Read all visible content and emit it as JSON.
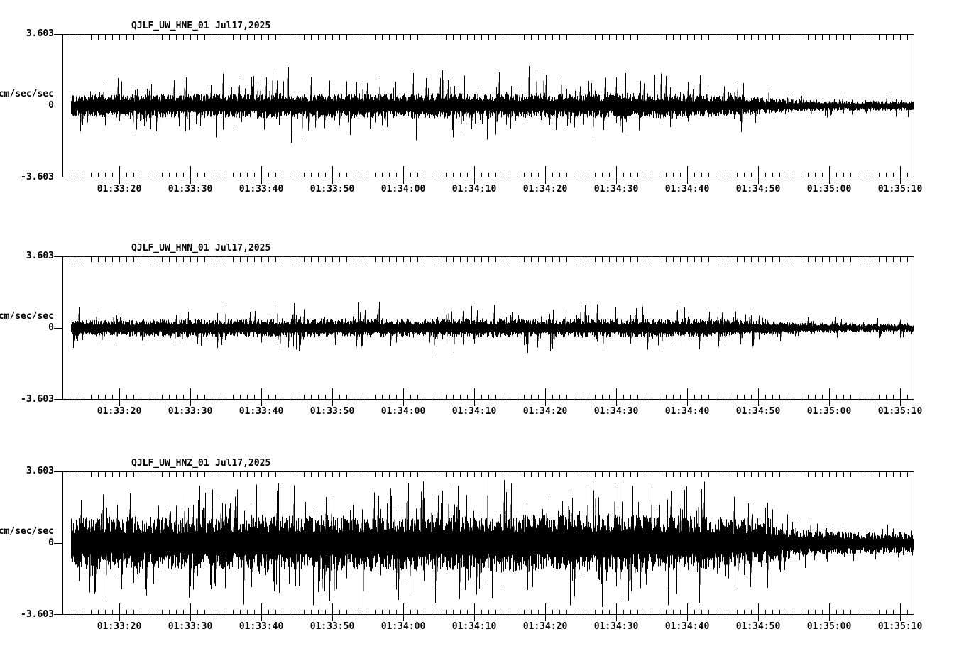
{
  "page": {
    "background": "#ffffff",
    "ink": "#000000"
  },
  "chart_data": {
    "type": "line",
    "kind": "seismogram",
    "grid": false,
    "legend": "none",
    "y_axis": {
      "max_label": "3.603",
      "zero_label": "0",
      "min_label": "-3.603",
      "unit": "cm/sec/sec",
      "ymin": -3.603,
      "ymax": 3.603
    },
    "x_axis": {
      "start_time": "01:33:12",
      "end_time": "01:35:12",
      "minor_tick_seconds": 1,
      "major_tick_seconds": 10,
      "tick_labels": [
        "01:33:20",
        "01:33:30",
        "01:33:40",
        "01:33:50",
        "01:34:00",
        "01:34:10",
        "01:34:20",
        "01:34:30",
        "01:34:40",
        "01:34:50",
        "01:35:00",
        "01:35:10"
      ]
    },
    "panels": [
      {
        "station": "QJLF_UW_HNE_01",
        "date": "Jul17,2025",
        "channel": "HNE",
        "envelope": {
          "comment": "estimated amplitude envelope, t = seconds after 01:33:12, units cm/sec/sec",
          "t": [
            0,
            5,
            20,
            32,
            38,
            48,
            60,
            66,
            75,
            81,
            88,
            94,
            100,
            106,
            112,
            120
          ],
          "core": [
            0.4,
            0.45,
            0.45,
            0.5,
            0.45,
            0.48,
            0.45,
            0.48,
            0.45,
            0.5,
            0.45,
            0.4,
            0.28,
            0.2,
            0.18,
            0.18
          ],
          "peak": [
            1.3,
            1.6,
            1.5,
            1.9,
            1.5,
            1.8,
            1.7,
            1.9,
            1.6,
            1.9,
            1.5,
            1.4,
            0.9,
            0.6,
            0.5,
            0.55
          ]
        }
      },
      {
        "station": "QJLF_UW_HNN_01",
        "date": "Jul17,2025",
        "channel": "HNN",
        "envelope": {
          "t": [
            0,
            10,
            20,
            30,
            40,
            50,
            58,
            68,
            76,
            85,
            92,
            100,
            106,
            112,
            120
          ],
          "core": [
            0.3,
            0.32,
            0.34,
            0.34,
            0.36,
            0.34,
            0.36,
            0.34,
            0.36,
            0.34,
            0.32,
            0.26,
            0.2,
            0.17,
            0.16
          ],
          "peak": [
            1.1,
            1.0,
            1.2,
            1.3,
            1.4,
            1.2,
            1.4,
            1.2,
            1.3,
            1.2,
            1.1,
            0.85,
            0.65,
            0.5,
            0.5
          ]
        }
      },
      {
        "station": "QJLF_UW_HNZ_01",
        "date": "Jul17,2025",
        "channel": "HNZ",
        "envelope": {
          "t": [
            0,
            8,
            18,
            28,
            36,
            45,
            55,
            62,
            70,
            78,
            86,
            92,
            98,
            103,
            108,
            114,
            120
          ],
          "core": [
            0.95,
            1.0,
            0.95,
            1.0,
            1.05,
            1.05,
            1.05,
            1.1,
            1.05,
            1.1,
            1.05,
            1.0,
            0.8,
            0.55,
            0.45,
            0.4,
            0.42
          ],
          "peak": [
            2.6,
            2.8,
            2.6,
            3.0,
            3.2,
            3.3,
            3.1,
            3.3,
            3.2,
            3.4,
            3.5,
            3.0,
            2.4,
            1.5,
            1.0,
            0.85,
            0.9
          ]
        }
      }
    ]
  }
}
